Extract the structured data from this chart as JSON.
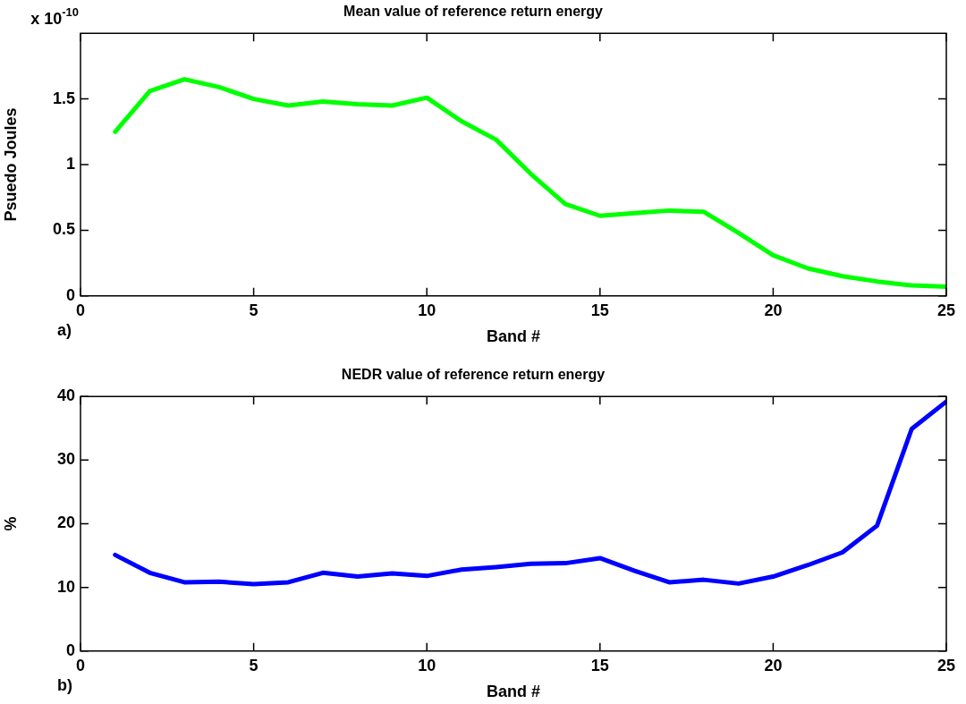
{
  "chart_data": [
    {
      "type": "line",
      "title": "Mean value of reference return energy",
      "xlabel": "Band #",
      "ylabel": "Psuedo Joules",
      "x": [
        1,
        2,
        3,
        4,
        5,
        6,
        7,
        8,
        9,
        10,
        11,
        12,
        13,
        14,
        15,
        16,
        17,
        18,
        19,
        20,
        21,
        22,
        23,
        24,
        25
      ],
      "series": [
        {
          "color": "#00ff00",
          "values": [
            1.25,
            1.56,
            1.65,
            1.59,
            1.5,
            1.45,
            1.48,
            1.46,
            1.45,
            1.51,
            1.33,
            1.19,
            0.93,
            0.7,
            0.61,
            0.63,
            0.65,
            0.64,
            0.48,
            0.31,
            0.21,
            0.15,
            0.11,
            0.08,
            0.07
          ]
        }
      ],
      "xlim": [
        0,
        25
      ],
      "xticks": [
        0,
        5,
        10,
        15,
        20,
        25
      ],
      "ylim": [
        0,
        2
      ],
      "yticks": [
        0,
        0.5,
        1,
        1.5
      ],
      "grid": false,
      "legend": false,
      "marker": "none",
      "line_style": "solid",
      "annotations": [
        "x 10$^{-10}$",
        "a)"
      ]
    },
    {
      "type": "line",
      "title": "NEDR value of reference return energy",
      "xlabel": "Band #",
      "ylabel": "%",
      "x": [
        1,
        2,
        3,
        4,
        5,
        6,
        7,
        8,
        9,
        10,
        11,
        12,
        13,
        14,
        15,
        16,
        17,
        18,
        19,
        20,
        21,
        22,
        23,
        24,
        25
      ],
      "series": [
        {
          "color": "#0000ff",
          "values": [
            15.1,
            12.3,
            10.8,
            10.9,
            10.5,
            10.8,
            12.3,
            11.7,
            12.2,
            11.8,
            12.8,
            13.2,
            13.7,
            13.8,
            14.6,
            12.6,
            10.8,
            11.2,
            10.6,
            11.7,
            13.5,
            15.5,
            19.7,
            34.9,
            39.2
          ]
        }
      ],
      "xlim": [
        0,
        25
      ],
      "xticks": [
        0,
        5,
        10,
        15,
        20,
        25
      ],
      "ylim": [
        0,
        40
      ],
      "yticks": [
        0,
        10,
        20,
        30,
        40
      ],
      "grid": false,
      "legend": false,
      "marker": "none",
      "line_style": "solid",
      "annotations": [
        "b)"
      ]
    }
  ]
}
